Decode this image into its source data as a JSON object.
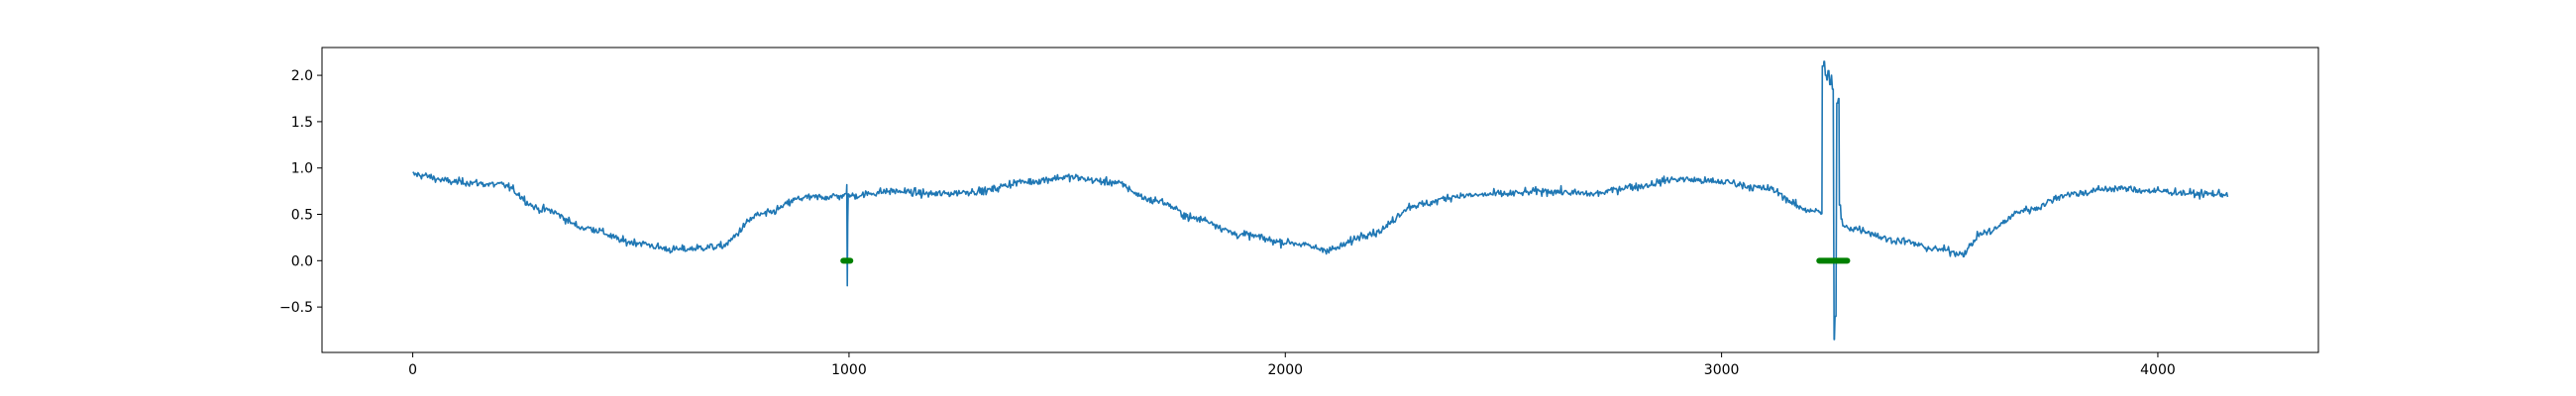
{
  "chart_data": {
    "type": "line",
    "title": "",
    "xlabel": "",
    "ylabel": "",
    "xlim": [
      -208,
      4368
    ],
    "ylim": [
      -0.99,
      2.3
    ],
    "grid": false,
    "x_ticks": [
      0,
      1000,
      2000,
      3000,
      4000
    ],
    "x_tick_labels": [
      "0",
      "1000",
      "2000",
      "3000",
      "4000"
    ],
    "y_ticks": [
      -0.5,
      0.0,
      0.5,
      1.0,
      1.5,
      2.0
    ],
    "y_tick_labels": [
      "−0.5",
      "0.0",
      "0.5",
      "1.0",
      "1.5",
      "2.0"
    ],
    "series": [
      {
        "kind": "line",
        "color": "#1f77b4",
        "x_start": 0,
        "x_end": 4160,
        "noise": 0.035,
        "trend_keypoints": [
          [
            0,
            0.93
          ],
          [
            100,
            0.85
          ],
          [
            200,
            0.82
          ],
          [
            300,
            0.55
          ],
          [
            400,
            0.35
          ],
          [
            500,
            0.2
          ],
          [
            600,
            0.12
          ],
          [
            700,
            0.15
          ],
          [
            800,
            0.5
          ],
          [
            900,
            0.68
          ],
          [
            1000,
            0.7
          ],
          [
            1100,
            0.75
          ],
          [
            1200,
            0.72
          ],
          [
            1300,
            0.75
          ],
          [
            1400,
            0.85
          ],
          [
            1500,
            0.9
          ],
          [
            1600,
            0.85
          ],
          [
            1700,
            0.65
          ],
          [
            1800,
            0.45
          ],
          [
            1900,
            0.28
          ],
          [
            2000,
            0.2
          ],
          [
            2100,
            0.12
          ],
          [
            2200,
            0.3
          ],
          [
            2300,
            0.6
          ],
          [
            2400,
            0.7
          ],
          [
            2500,
            0.72
          ],
          [
            2600,
            0.75
          ],
          [
            2700,
            0.72
          ],
          [
            2800,
            0.8
          ],
          [
            2900,
            0.88
          ],
          [
            3000,
            0.85
          ],
          [
            3100,
            0.78
          ],
          [
            3200,
            0.55
          ],
          [
            3300,
            0.35
          ],
          [
            3400,
            0.22
          ],
          [
            3500,
            0.12
          ],
          [
            3550,
            0.08
          ],
          [
            3600,
            0.3
          ],
          [
            3700,
            0.55
          ],
          [
            3800,
            0.72
          ],
          [
            3900,
            0.78
          ],
          [
            4000,
            0.75
          ],
          [
            4100,
            0.72
          ],
          [
            4160,
            0.72
          ]
        ],
        "anomalies": [
          {
            "x_start": 995,
            "x_end": 998,
            "values": [
              0.82,
              -0.27,
              0.4,
              0.72
            ]
          },
          {
            "x_start": 3231,
            "x_end": 3276,
            "values": [
              2.1,
              2.15,
              2.0,
              1.95,
              2.05,
              1.9,
              2.0,
              1.85,
              -0.85,
              -0.6,
              1.7,
              1.75,
              0.6,
              0.45
            ]
          }
        ]
      },
      {
        "kind": "marker_segments",
        "color": "#008000",
        "segments": [
          {
            "x_start": 987,
            "x_end": 1003,
            "y": 0.0
          },
          {
            "x_start": 3224,
            "x_end": 3288,
            "y": 0.0
          }
        ]
      }
    ]
  }
}
